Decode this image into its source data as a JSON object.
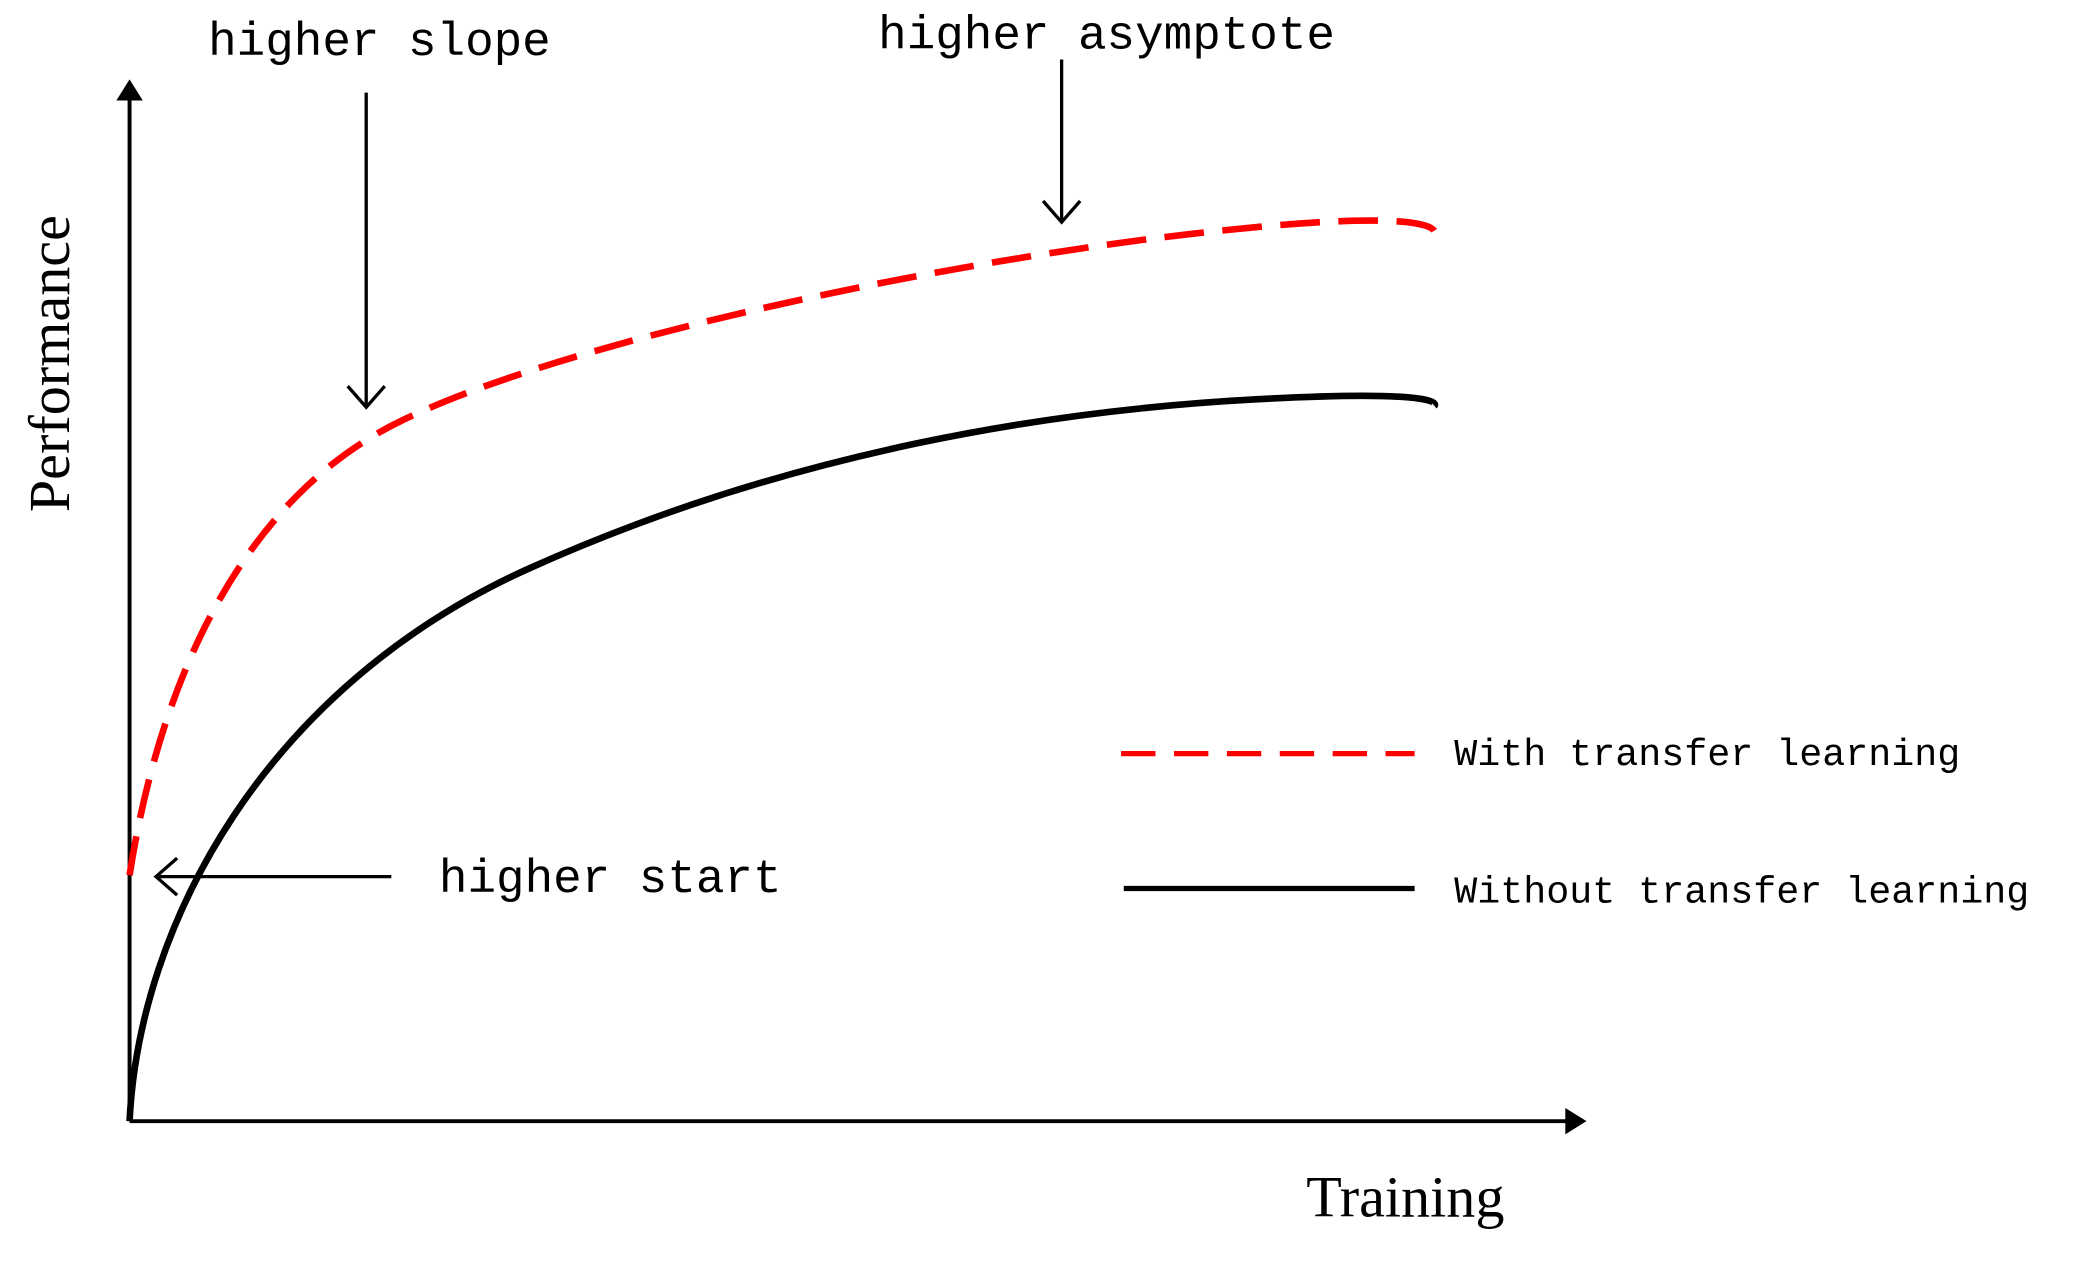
{
  "axes": {
    "y_label": "Performance",
    "x_label": "Training"
  },
  "annotations": {
    "slope": "higher slope",
    "asymptote": "higher asymptote",
    "start": "higher start"
  },
  "legend": {
    "with": "With transfer learning",
    "without": "Without transfer learning"
  }
}
